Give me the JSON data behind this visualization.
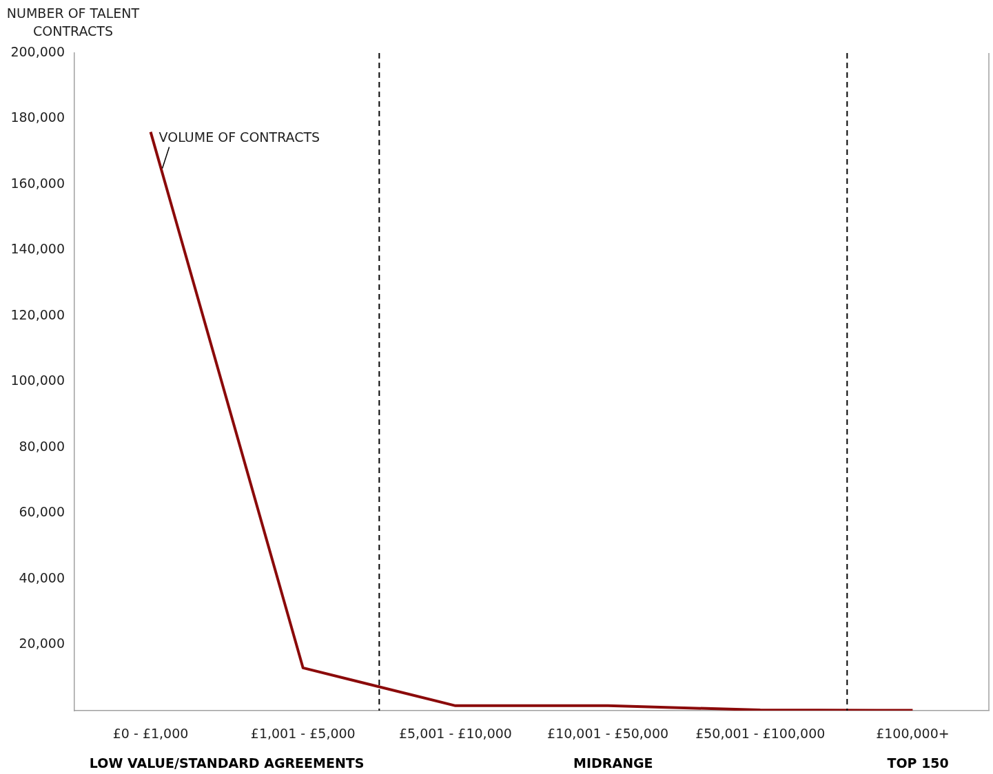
{
  "chart_data": {
    "type": "line",
    "ylabel": "NUMBER OF TALENT CONTRACTS",
    "categories": [
      "£0 - £1,000",
      "£1,001 - £5,000",
      "£5,001 - £10,000",
      "£10,001 - £50,000",
      "£50,001 - £100,000",
      "£100,000+"
    ],
    "series": [
      {
        "name": "VOLUME OF CONTRACTS",
        "color": "#8b0a0a",
        "values": [
          176000,
          13000,
          1500,
          1500,
          200,
          100
        ]
      }
    ],
    "ylim": [
      0,
      200000
    ],
    "yticks": [
      {
        "value": 20000,
        "label": "20,000"
      },
      {
        "value": 40000,
        "label": "40,000"
      },
      {
        "value": 60000,
        "label": "60,000"
      },
      {
        "value": 80000,
        "label": "80,000"
      },
      {
        "value": 100000,
        "label": "100,000"
      },
      {
        "value": 120000,
        "label": "120,000"
      },
      {
        "value": 140000,
        "label": "140,000"
      },
      {
        "value": 160000,
        "label": "160,000"
      },
      {
        "value": 180000,
        "label": "180,000"
      },
      {
        "value": 200000,
        "label": "200,000"
      }
    ],
    "annotations": [
      "LOW VALUE/STANDARD AGREEMENTS",
      "MIDRANGE",
      "TOP 150"
    ],
    "grid": false,
    "legend": false,
    "marker": "none",
    "line_style": "solid"
  }
}
